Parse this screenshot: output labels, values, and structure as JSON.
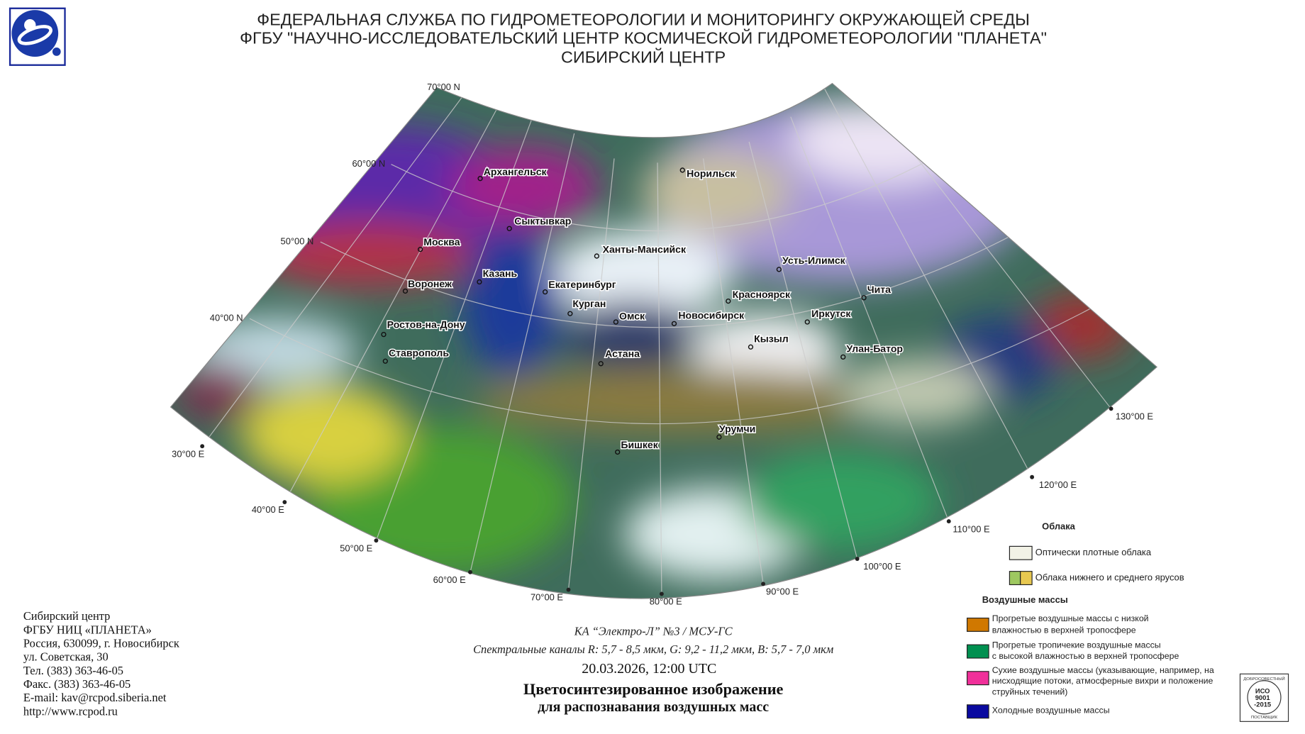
{
  "header": {
    "lines": [
      "ФЕДЕРАЛЬНАЯ СЛУЖБА ПО ГИДРОМЕТЕОРОЛОГИИ И МОНИТОРИНГУ ОКРУЖАЮЩЕЙ СРЕДЫ",
      "ФГБУ \"НАУЧНО-ИССЛЕДОВАТЕЛЬСКИЙ ЦЕНТР КОСМИЧЕСКОЙ ГИДРОМЕТЕОРОЛОГИИ \"ПЛАНЕТА\"",
      "СИБИРСКИЙ ЦЕНТР"
    ]
  },
  "map": {
    "latitude_labels": [
      "70°00 N",
      "60°00 N",
      "50°00 N",
      "40°00 N"
    ],
    "longitude_labels": [
      "30°00 E",
      "40°00 E",
      "50°00 E",
      "60°00 E",
      "70°00 E",
      "80°00 E",
      "90°00 E",
      "100°00 E",
      "110°00 E",
      "120°00 E",
      "130°00 E"
    ],
    "cities": [
      "Архангельск",
      "Сыктывкар",
      "Москва",
      "Казань",
      "Воронеж",
      "Ханты-Мансийск",
      "Екатеринбург",
      "Курган",
      "Омск",
      "Ростов-на-Дону",
      "Ставрополь",
      "Астана",
      "Новосибирск",
      "Норильск",
      "Усть-Илимск",
      "Красноярск",
      "Иркутск",
      "Чита",
      "Кызыл",
      "Улан-Батор",
      "Урумчи",
      "Бишкек"
    ]
  },
  "legend": {
    "clouds": {
      "title": "Облака",
      "items": [
        "Оптически плотные облака",
        "Облака нижнего и среднего ярусов"
      ]
    },
    "air_masses": {
      "title": "Воздушные массы",
      "items": [
        {
          "lines": [
            "Прогретые воздушные массы с низкой",
            "влажностью в верхней тропосфере"
          ]
        },
        {
          "lines": [
            "Прогретые тропичекие воздушные массы",
            "с высокой влажностью в верхней тропосфере"
          ]
        },
        {
          "lines": [
            "Сухие воздушные массы (указывающие, например, на",
            "нисходящие потоки, атмосферные вихри и положение",
            "струйных течений)"
          ]
        },
        {
          "lines": [
            "Холодные воздушные массы"
          ]
        }
      ]
    }
  },
  "caption": {
    "satellite": "КА “Электро-Л” №3 / МСУ-ГС",
    "channels": "Спектральные каналы R: 5,7 - 8,5 мкм, G: 9,2 - 11,2 мкм, B: 5,7 - 7,0 мкм",
    "datetime": "20.03.2026, 12:00 UTC",
    "title_lines": [
      "Цветосинтезированное изображение",
      "для распознавания воздушных масс"
    ]
  },
  "contacts": {
    "lines": [
      "Сибирский центр",
      "ФГБУ НИЦ «ПЛАНЕТА»",
      "Россия, 630099, г. Новосибирск",
      "ул. Советская, 30",
      "Тел. (383) 363-46-05",
      "Факс. (383) 363-46-05",
      "E-mail: kav@rcpod.siberia.net",
      "http://www.rcpod.ru"
    ]
  },
  "certificate": {
    "top": "ДОБРОСОВЕСТНЫЙ",
    "lines": [
      "ИСО",
      "9001",
      "-2015"
    ],
    "bottom": "ПОСТАВЩИК"
  }
}
